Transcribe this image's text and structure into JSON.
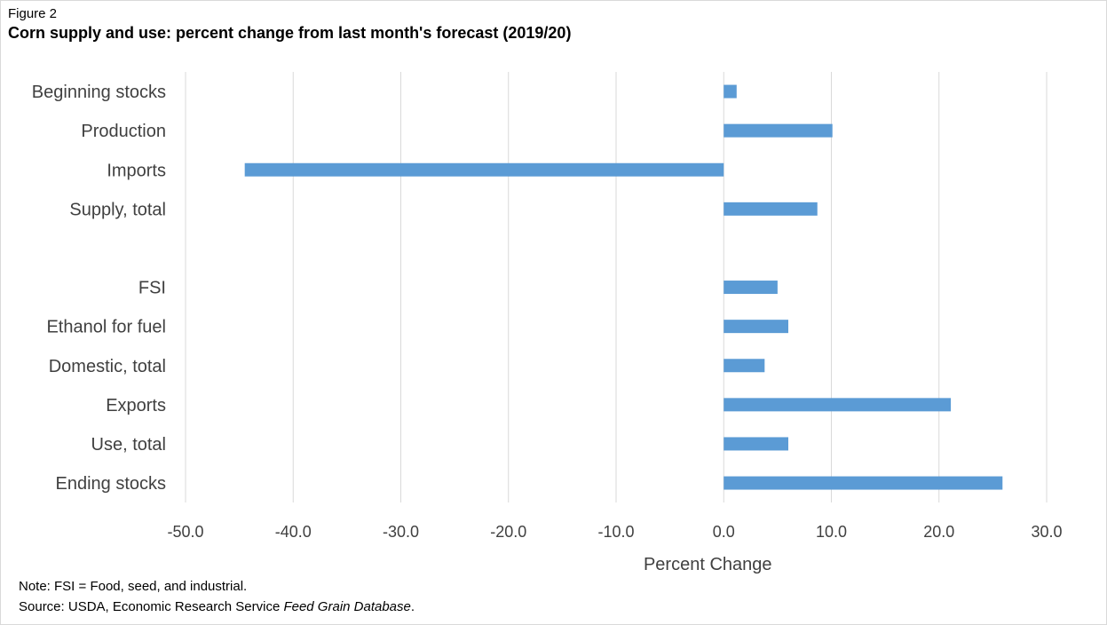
{
  "figure": {
    "label": "Figure 2",
    "title": "Corn supply and use: percent change from last month's forecast (2019/20)"
  },
  "chart_data": {
    "type": "bar",
    "orientation": "horizontal",
    "categories": [
      "Beginning stocks",
      "Production",
      "Imports",
      "Supply, total",
      "",
      "FSI",
      "Ethanol for fuel",
      "Domestic, total",
      "Exports",
      "Use, total",
      "Ending stocks"
    ],
    "values": [
      1.2,
      10.1,
      -44.5,
      8.7,
      null,
      5.0,
      6.0,
      3.8,
      21.1,
      6.0,
      25.9
    ],
    "xlabel": "Percent Change",
    "ylabel": "",
    "xlim": [
      -50,
      30
    ],
    "xticks": [
      -50,
      -40,
      -30,
      -20,
      -10,
      0,
      10,
      20,
      30
    ],
    "xtick_labels": [
      "-50.0",
      "-40.0",
      "-30.0",
      "-20.0",
      "-10.0",
      "0.0",
      "10.0",
      "20.0",
      "30.0"
    ],
    "grid": true,
    "bar_color": "#5b9bd5",
    "grid_color": "#d9d9d9"
  },
  "footer": {
    "note": "Note: FSI = Food, seed, and industrial.",
    "source_prefix": "Source: USDA, Economic Research Service ",
    "source_italic": "Feed Grain Database",
    "source_suffix": "."
  }
}
